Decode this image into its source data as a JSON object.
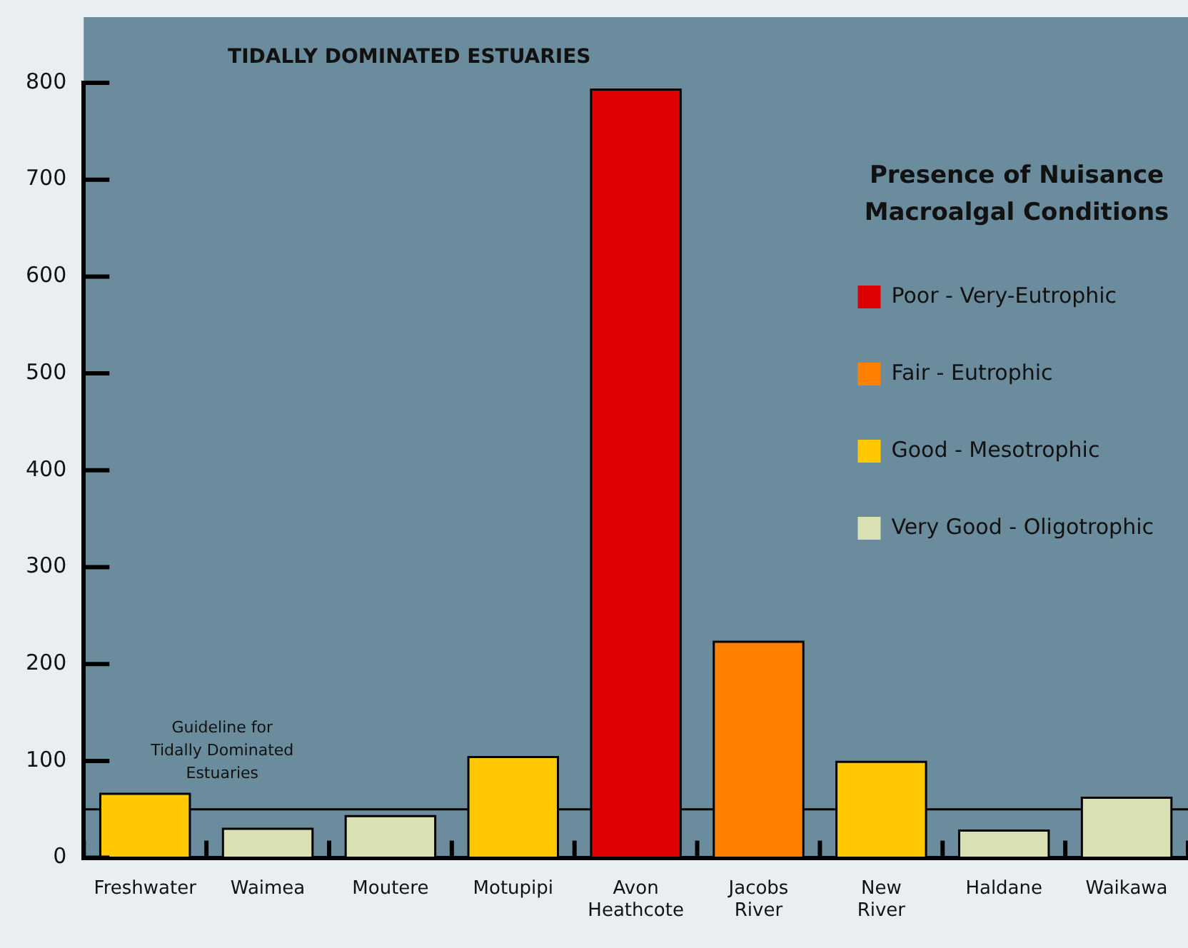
{
  "chart_data": {
    "type": "bar",
    "title": "TIDALLY DOMINATED ESTUARIES",
    "legend_title": "Presence of Nuisance Macroalgal Conditions",
    "categories": [
      "Freshwater",
      "Waimea",
      "Moutere",
      "Motupipi",
      "Avon Heathcote",
      "Jacobs River",
      "New River",
      "Haldane",
      "Waikawa"
    ],
    "stacked": true,
    "series": [
      {
        "name": "Poor - Very-Eutrophic",
        "color": "#dd0000",
        "values": [
          null,
          null,
          null,
          null,
          793,
          null,
          null,
          null,
          null
        ]
      },
      {
        "name": "Fair - Eutrophic",
        "color": "#ff7f00",
        "values": [
          null,
          null,
          null,
          null,
          null,
          223,
          null,
          null,
          null
        ]
      },
      {
        "name": "Good - Mesotrophic",
        "color": "#ffc800",
        "values": [
          66,
          null,
          null,
          104,
          null,
          null,
          99,
          null,
          null
        ]
      },
      {
        "name": "Very Good - Oligotrophic",
        "color": "#d9e1b4",
        "values": [
          null,
          30,
          43,
          null,
          null,
          null,
          null,
          28,
          62
        ]
      }
    ],
    "ylim": [
      0,
      800
    ],
    "yticks": [
      0,
      100,
      200,
      300,
      400,
      500,
      600,
      700,
      800
    ],
    "ref_lines": [
      {
        "axis": "y",
        "value": 50,
        "label": "Guideline for Tidally Dominated Estuaries",
        "color": "#000000"
      }
    ],
    "grid": false,
    "legend": "top right"
  }
}
